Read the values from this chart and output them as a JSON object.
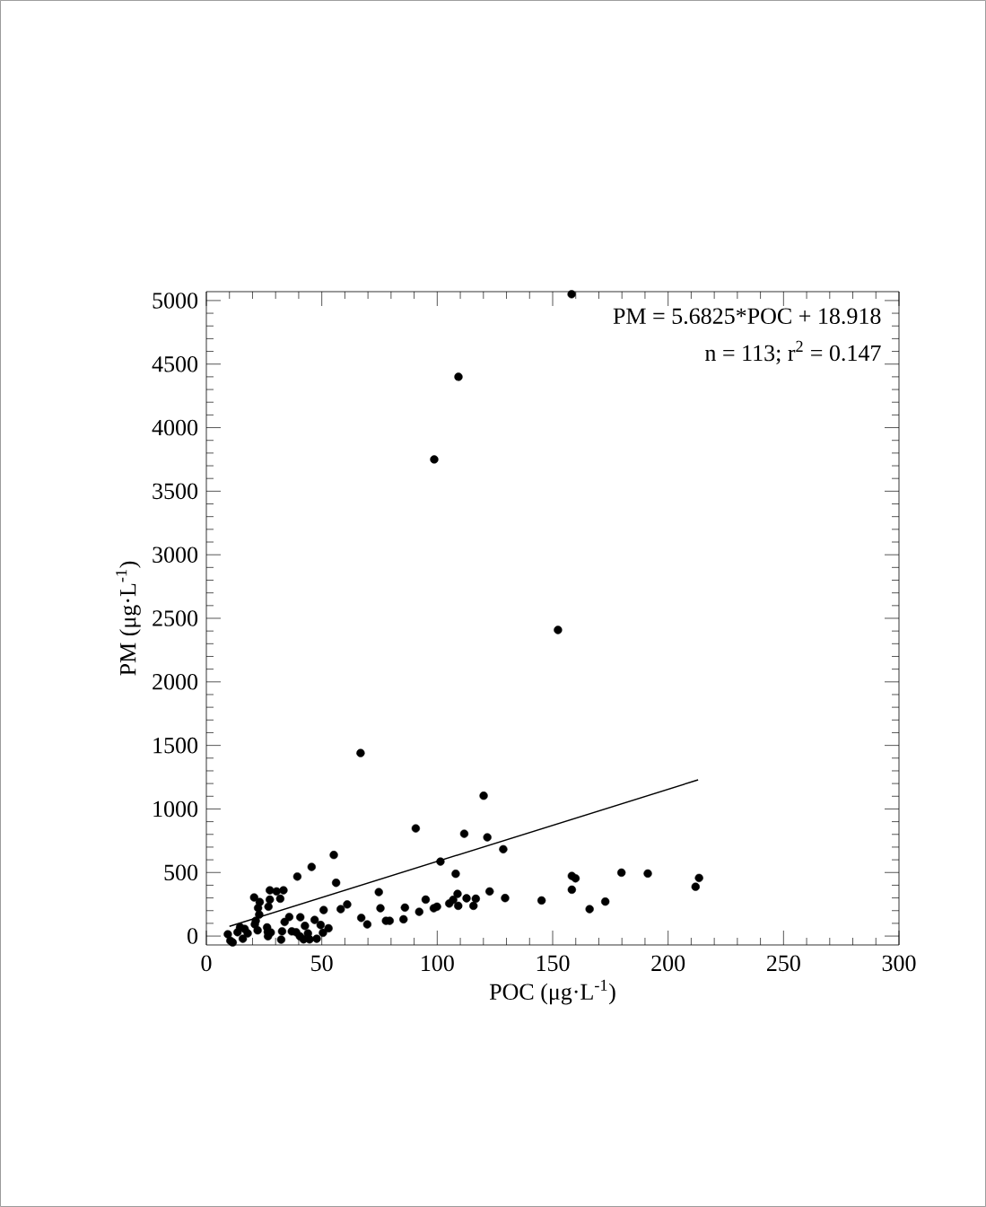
{
  "chart_data": {
    "type": "scatter",
    "xlabel": "POC (μg·L$^{-1}$)",
    "ylabel": "PM (μg·L$^{-1}$)",
    "annotations": [
      "PM = 5.6825*POC + 18.918",
      "n = 113; r$^{2}$ = 0.147"
    ],
    "xlim": [
      0,
      300
    ],
    "ylim": [
      -70,
      5070
    ],
    "xticks": [
      0,
      50,
      100,
      150,
      200,
      250,
      300
    ],
    "yticks": [
      0,
      500,
      1000,
      1500,
      2000,
      2500,
      3000,
      3500,
      4000,
      4500,
      5000
    ],
    "grid": false,
    "series": [
      {
        "color": "#000000",
        "marker": "circle",
        "x": [
          158.2,
          98.7,
          109.2,
          152.3,
          66.8,
          90.7,
          120.1,
          111.7,
          121.7,
          128.6,
          101.4,
          108.0,
          74.7,
          75.4,
          77.8,
          79.4,
          85.4,
          86.0,
          92.2,
          95.0,
          98.5,
          99.9,
          105.2,
          106.9,
          108.8,
          109.1,
          112.7,
          115.7,
          116.7,
          122.7,
          129.4,
          145.2,
          158.3,
          159.9,
          158.3,
          166.0,
          172.8,
          179.8,
          191.2,
          211.9,
          213.4,
          9.3,
          10.4,
          11.4,
          14.6,
          15.8,
          16.6,
          13.5,
          17.9,
          20.7,
          23.1,
          22.4,
          22.9,
          21.4,
          21.0,
          22.2,
          26.3,
          27.5,
          26.9,
          27.5,
          30.4,
          33.4,
          32.0,
          26.6,
          27.9,
          26.7,
          32.4,
          32.8,
          33.9,
          35.9,
          37.0,
          39.4,
          45.6,
          55.2,
          56.2,
          40.7,
          38.9,
          40.5,
          42.7,
          44.0,
          42.1,
          44.7,
          46.9,
          47.8,
          49.5,
          50.5,
          50.8,
          52.9,
          58.2,
          61.0,
          67.1,
          69.7
        ],
        "values": [
          5050,
          3750,
          4400,
          2408,
          1440,
          847,
          1104,
          805,
          777,
          683,
          586,
          490,
          346,
          219,
          120,
          120,
          132,
          224,
          191,
          287,
          219,
          231,
          256,
          285,
          332,
          238,
          297,
          238,
          294,
          351,
          299,
          280,
          473,
          454,
          365,
          212,
          271,
          499,
          492,
          388,
          457,
          14,
          -37,
          -50,
          70,
          -21,
          56,
          30,
          21,
          304,
          268,
          221,
          169,
          120,
          92,
          45,
          68,
          287,
          231,
          360,
          351,
          360,
          294,
          33,
          28,
          -2,
          -28,
          37,
          111,
          150,
          37,
          468,
          544,
          638,
          419,
          148,
          30,
          -2,
          80,
          21,
          -26,
          -26,
          127,
          -21,
          87,
          26,
          205,
          61,
          212,
          249,
          143,
          92
        ]
      },
      {
        "type": "line",
        "color": "#000000",
        "x": [
          10,
          213
        ],
        "values": [
          76,
          1229
        ]
      }
    ]
  }
}
